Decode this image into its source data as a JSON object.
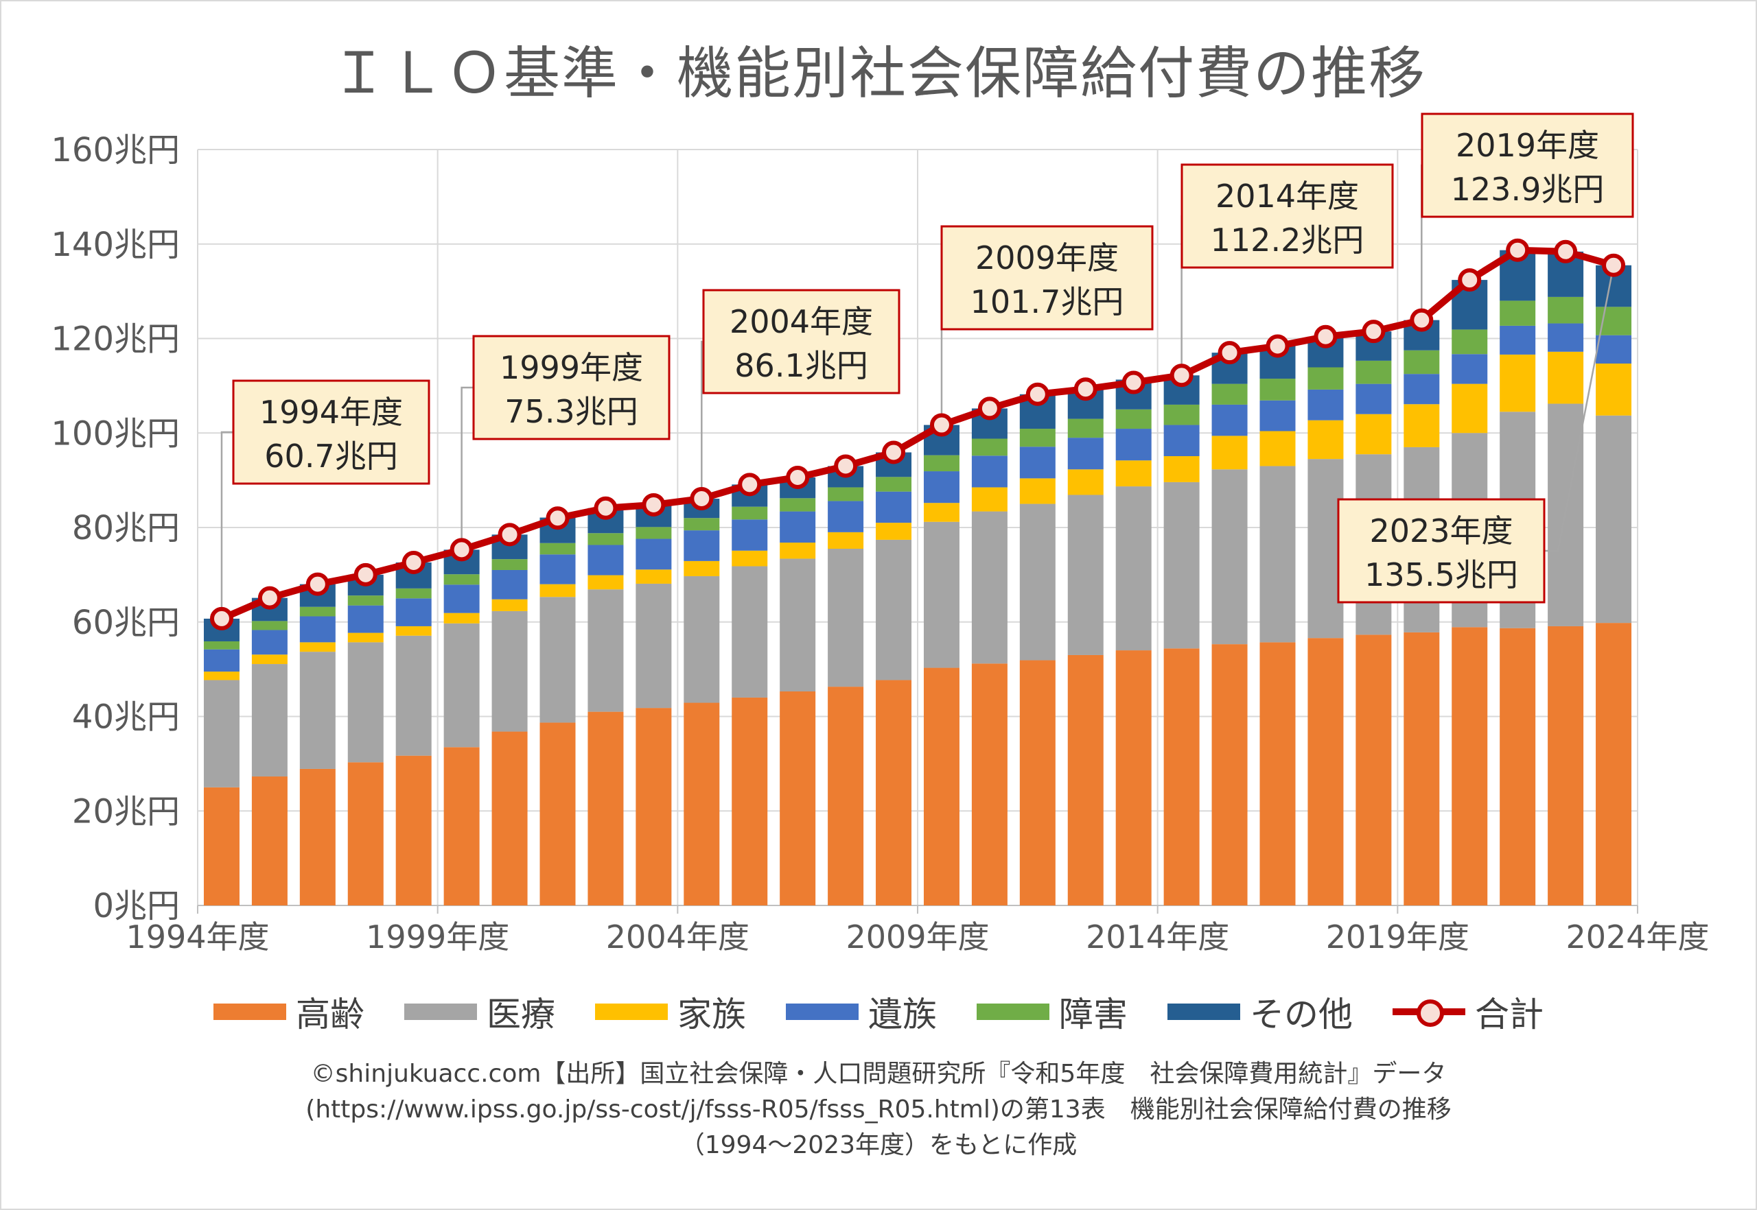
{
  "chart_data": {
    "type": "bar",
    "title": "ＩＬＯ基準・機能別社会保障給付費の推移",
    "y_unit": "兆円",
    "ylim": [
      0,
      160
    ],
    "y_ticks": [
      "0兆円",
      "20兆円",
      "40兆円",
      "60兆円",
      "80兆円",
      "100兆円",
      "120兆円",
      "140兆円",
      "160兆円"
    ],
    "x_ticks": [
      "1994年度",
      "1999年度",
      "2004年度",
      "2009年度",
      "2014年度",
      "2019年度",
      "2024年度"
    ],
    "grid": true,
    "legend_position": "bottom",
    "categories": [
      1994,
      1995,
      1996,
      1997,
      1998,
      1999,
      2000,
      2001,
      2002,
      2003,
      2004,
      2005,
      2006,
      2007,
      2008,
      2009,
      2010,
      2011,
      2012,
      2013,
      2014,
      2015,
      2016,
      2017,
      2018,
      2019,
      2020,
      2021,
      2022,
      2023
    ],
    "series": [
      {
        "name": "高齢",
        "color": "#ed7d31",
        "values": [
          25.0,
          27.3,
          28.9,
          30.3,
          31.7,
          33.5,
          36.8,
          38.7,
          41.0,
          41.8,
          42.9,
          44.0,
          45.3,
          46.3,
          47.7,
          50.3,
          51.2,
          51.9,
          53.0,
          54.0,
          54.4,
          55.3,
          55.7,
          56.6,
          57.3,
          57.8,
          58.9,
          58.7,
          59.1,
          59.8
        ]
      },
      {
        "name": "医療",
        "color": "#a5a5a5",
        "values": [
          22.7,
          23.8,
          24.8,
          25.4,
          25.4,
          26.2,
          25.5,
          26.6,
          25.9,
          26.3,
          26.8,
          27.8,
          28.1,
          29.2,
          29.7,
          30.9,
          32.2,
          33.1,
          33.9,
          34.7,
          35.2,
          37.0,
          37.3,
          37.9,
          38.2,
          39.2,
          41.1,
          45.8,
          47.1,
          43.9
        ]
      },
      {
        "name": "家族",
        "color": "#ffc000",
        "values": [
          1.8,
          2.0,
          2.0,
          2.0,
          2.0,
          2.2,
          2.5,
          2.7,
          3.0,
          3.0,
          3.2,
          3.3,
          3.4,
          3.5,
          3.6,
          4.0,
          5.1,
          5.4,
          5.4,
          5.5,
          5.5,
          7.1,
          7.4,
          8.2,
          8.5,
          9.1,
          10.4,
          12.1,
          11.0,
          11.0
        ]
      },
      {
        "name": "遺族",
        "color": "#4472c4",
        "values": [
          4.7,
          5.2,
          5.5,
          5.8,
          5.9,
          6.0,
          6.2,
          6.3,
          6.4,
          6.5,
          6.5,
          6.6,
          6.6,
          6.6,
          6.6,
          6.7,
          6.7,
          6.7,
          6.7,
          6.7,
          6.6,
          6.6,
          6.5,
          6.5,
          6.4,
          6.4,
          6.3,
          6.1,
          6.0,
          6.0
        ]
      },
      {
        "name": "障害",
        "color": "#70ad47",
        "values": [
          1.7,
          1.9,
          2.0,
          2.1,
          2.1,
          2.2,
          2.3,
          2.4,
          2.5,
          2.5,
          2.6,
          2.7,
          2.8,
          2.9,
          3.1,
          3.4,
          3.6,
          3.8,
          4.0,
          4.1,
          4.3,
          4.4,
          4.6,
          4.7,
          4.9,
          5.0,
          5.2,
          5.3,
          5.6,
          6.0
        ]
      },
      {
        "name": "その他",
        "color": "#255e91",
        "values": [
          4.8,
          4.9,
          4.8,
          4.4,
          5.5,
          5.2,
          5.2,
          5.4,
          5.3,
          4.7,
          4.1,
          4.7,
          4.4,
          4.5,
          5.2,
          6.4,
          6.4,
          7.3,
          6.3,
          6.3,
          6.2,
          6.6,
          6.9,
          6.5,
          6.2,
          6.4,
          10.5,
          10.7,
          9.6,
          8.8
        ]
      }
    ],
    "total": {
      "name": "合計",
      "color": "#c00000",
      "values": [
        60.7,
        65.1,
        68.0,
        70.0,
        72.6,
        75.3,
        78.5,
        82.0,
        84.1,
        84.8,
        86.1,
        89.1,
        90.6,
        93.0,
        95.9,
        101.7,
        105.2,
        108.2,
        109.3,
        110.7,
        112.2,
        117.0,
        118.4,
        120.4,
        121.5,
        123.9,
        132.4,
        138.7,
        138.4,
        135.5
      ]
    },
    "callouts": [
      {
        "year": 1994,
        "line1": "1994年度",
        "line2": "60.7兆円"
      },
      {
        "year": 1999,
        "line1": "1999年度",
        "line2": "75.3兆円"
      },
      {
        "year": 2004,
        "line1": "2004年度",
        "line2": "86.1兆円"
      },
      {
        "year": 2009,
        "line1": "2009年度",
        "line2": "101.7兆円"
      },
      {
        "year": 2014,
        "line1": "2014年度",
        "line2": "112.2兆円"
      },
      {
        "year": 2019,
        "line1": "2019年度",
        "line2": "123.9兆円"
      },
      {
        "year": 2023,
        "line1": "2023年度",
        "line2": "135.5兆円"
      }
    ]
  },
  "legend": [
    {
      "label": "高齢",
      "color": "#ed7d31"
    },
    {
      "label": "医療",
      "color": "#a5a5a5"
    },
    {
      "label": "家族",
      "color": "#ffc000"
    },
    {
      "label": "遺族",
      "color": "#4472c4"
    },
    {
      "label": "障害",
      "color": "#70ad47"
    },
    {
      "label": "その他",
      "color": "#255e91"
    },
    {
      "label": "合計",
      "color": "#c00000"
    }
  ],
  "source": {
    "line1": "©shinjukuacc.com【出所】国立社会保障・人口問題研究所『令和5年度　社会保障費用統計』データ",
    "line2": "(https://www.ipss.go.jp/ss-cost/j/fsss-R05/fsss_R05.html)の第13表　機能別社会保障給付費の推移",
    "line3": "（1994～2023年度）をもとに作成"
  }
}
